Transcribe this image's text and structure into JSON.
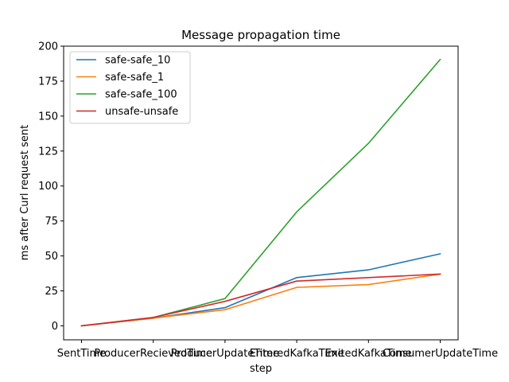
{
  "chart_data": {
    "type": "line",
    "title": "Message propagation time",
    "xlabel": "step",
    "ylabel": "ms after Curl request sent",
    "categories": [
      "SentTime",
      "ProducerRecievedTime",
      "ProducerUpdateTime",
      "EnteredKafkaTime",
      "ExitedKafkaTime",
      "ConsumerUpdateTime"
    ],
    "ylim": [
      -10,
      200
    ],
    "yticks": [
      0,
      25,
      50,
      75,
      100,
      125,
      150,
      175,
      200
    ],
    "legend_position": "top-left",
    "grid": false,
    "series": [
      {
        "name": "safe-safe_10",
        "color": "#1f77b4",
        "values": [
          0,
          5.5,
          13,
          34.5,
          40,
          51.5
        ]
      },
      {
        "name": "safe-safe_1",
        "color": "#ff7f0e",
        "values": [
          0,
          5.5,
          11.5,
          27.5,
          29.5,
          37
        ]
      },
      {
        "name": "safe-safe_100",
        "color": "#2ca02c",
        "values": [
          0,
          6,
          19.5,
          81.5,
          130.5,
          190.5
        ]
      },
      {
        "name": "unsafe-unsafe",
        "color": "#d62728",
        "values": [
          0,
          6,
          17.5,
          32,
          34.5,
          37
        ]
      }
    ]
  }
}
